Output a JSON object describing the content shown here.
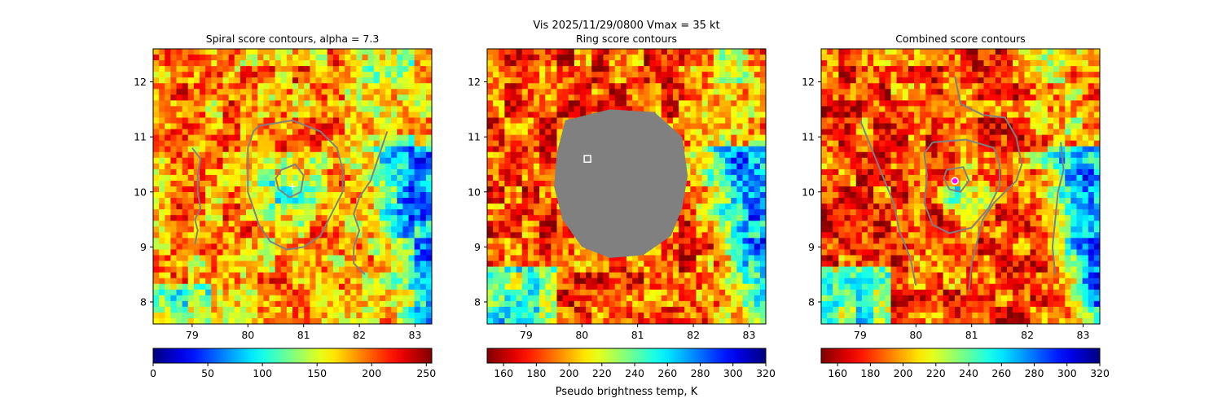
{
  "figure": {
    "suptitle_line1": "Vis  2025/11/29/0800    Vmax = 35 kt",
    "colorbar_label": "Pseudo brightness temp, K"
  },
  "chart_data": [
    {
      "type": "heatmap",
      "title": "Spiral score contours, alpha =  7.3",
      "xlim": [
        78.3,
        83.3
      ],
      "ylim": [
        7.6,
        12.6
      ],
      "xticks": [
        "79",
        "80",
        "81",
        "82",
        "83"
      ],
      "yticks": [
        "8",
        "9",
        "10",
        "11",
        "12"
      ],
      "colormap": "jet",
      "colorbar": {
        "min": 0,
        "max": 255,
        "ticks": [
          "0",
          "50",
          "100",
          "150",
          "200",
          "250"
        ]
      },
      "contour_color": "#808080",
      "center_marker": {
        "x": 80.8,
        "y": 10.1,
        "symbol": "+",
        "color": "#ffffff"
      },
      "contours": [
        [
          [
            80.2,
            11.2
          ],
          [
            80.8,
            11.3
          ],
          [
            81.3,
            11.1
          ],
          [
            81.6,
            10.8
          ],
          [
            81.7,
            10.4
          ],
          [
            81.7,
            10.0
          ],
          [
            81.5,
            9.6
          ],
          [
            81.3,
            9.2
          ],
          [
            81.0,
            9.0
          ],
          [
            80.7,
            8.95
          ],
          [
            80.4,
            9.1
          ],
          [
            80.2,
            9.4
          ],
          [
            80.1,
            9.7
          ],
          [
            80.0,
            10.0
          ],
          [
            80.0,
            10.4
          ],
          [
            80.0,
            10.8
          ],
          [
            80.1,
            11.1
          ],
          [
            80.2,
            11.2
          ]
        ],
        [
          [
            80.6,
            10.4
          ],
          [
            80.85,
            10.5
          ],
          [
            81.0,
            10.3
          ],
          [
            80.95,
            10.0
          ],
          [
            80.75,
            9.9
          ],
          [
            80.55,
            10.05
          ],
          [
            80.5,
            10.25
          ],
          [
            80.6,
            10.4
          ]
        ],
        [
          [
            79.0,
            10.8
          ],
          [
            79.15,
            10.6
          ],
          [
            79.1,
            10.3
          ],
          [
            79.1,
            10.0
          ],
          [
            79.15,
            9.7
          ],
          [
            79.05,
            9.5
          ],
          [
            79.1,
            9.3
          ],
          [
            79.05,
            9.05
          ]
        ],
        [
          [
            82.5,
            11.1
          ],
          [
            82.4,
            10.8
          ],
          [
            82.3,
            10.5
          ],
          [
            82.2,
            10.2
          ],
          [
            82.0,
            9.9
          ],
          [
            81.9,
            9.6
          ],
          [
            82.0,
            9.3
          ],
          [
            81.9,
            9.0
          ],
          [
            81.9,
            8.7
          ],
          [
            82.1,
            8.5
          ]
        ]
      ]
    },
    {
      "type": "heatmap",
      "title": "Ring score contours",
      "xlim": [
        78.3,
        83.3
      ],
      "ylim": [
        7.6,
        12.6
      ],
      "xticks": [
        "79",
        "80",
        "81",
        "82",
        "83"
      ],
      "yticks": [
        "8",
        "9",
        "10",
        "11",
        "12"
      ],
      "colormap": "jet_r",
      "colorbar": {
        "min": 150,
        "max": 320,
        "ticks": [
          "160",
          "180",
          "200",
          "220",
          "240",
          "260",
          "280",
          "300",
          "320"
        ]
      },
      "mask_color": "#808080",
      "mask_region": [
        [
          79.7,
          11.3
        ],
        [
          80.5,
          11.5
        ],
        [
          81.3,
          11.45
        ],
        [
          81.8,
          11.0
        ],
        [
          81.9,
          10.3
        ],
        [
          81.8,
          9.7
        ],
        [
          81.6,
          9.2
        ],
        [
          81.1,
          8.85
        ],
        [
          80.5,
          8.8
        ],
        [
          80.0,
          9.0
        ],
        [
          79.65,
          9.5
        ],
        [
          79.5,
          10.1
        ],
        [
          79.55,
          10.7
        ],
        [
          79.7,
          11.3
        ]
      ],
      "center_marker": {
        "x": 80.1,
        "y": 10.6,
        "symbol": "square",
        "color": "#ffffff"
      }
    },
    {
      "type": "heatmap",
      "title": "Combined score contours",
      "xlim": [
        78.3,
        83.3
      ],
      "ylim": [
        7.6,
        12.6
      ],
      "xticks": [
        "79",
        "80",
        "81",
        "82",
        "83"
      ],
      "yticks": [
        "8",
        "9",
        "10",
        "11",
        "12"
      ],
      "colormap": "jet_r",
      "colorbar": {
        "min": 150,
        "max": 320,
        "ticks": [
          "160",
          "180",
          "200",
          "220",
          "240",
          "260",
          "280",
          "300",
          "320"
        ]
      },
      "contour_color": "#808080",
      "center_marker": {
        "x": 80.7,
        "y": 10.2,
        "symbol": "circle",
        "color": "#ff00ff"
      },
      "contours": [
        [
          [
            80.3,
            10.9
          ],
          [
            80.9,
            10.95
          ],
          [
            81.4,
            10.8
          ],
          [
            81.5,
            10.5
          ],
          [
            81.5,
            10.1
          ],
          [
            81.3,
            9.7
          ],
          [
            81.0,
            9.35
          ],
          [
            80.6,
            9.25
          ],
          [
            80.3,
            9.4
          ],
          [
            80.15,
            9.8
          ],
          [
            80.2,
            10.3
          ],
          [
            80.15,
            10.7
          ],
          [
            80.3,
            10.9
          ]
        ],
        [
          [
            80.55,
            10.4
          ],
          [
            80.85,
            10.45
          ],
          [
            80.95,
            10.2
          ],
          [
            80.8,
            10.0
          ],
          [
            80.6,
            10.05
          ],
          [
            80.5,
            10.25
          ],
          [
            80.55,
            10.4
          ]
        ],
        [
          [
            79.0,
            11.3
          ],
          [
            79.2,
            10.8
          ],
          [
            79.4,
            10.3
          ],
          [
            79.6,
            9.8
          ],
          [
            79.7,
            9.3
          ],
          [
            79.9,
            8.8
          ],
          [
            80.0,
            8.3
          ]
        ],
        [
          [
            80.7,
            12.1
          ],
          [
            80.8,
            11.6
          ],
          [
            81.2,
            11.4
          ],
          [
            81.6,
            11.35
          ],
          [
            81.8,
            11.0
          ],
          [
            81.9,
            10.5
          ],
          [
            81.8,
            10.2
          ],
          [
            81.4,
            9.8
          ],
          [
            81.2,
            9.5
          ],
          [
            81.1,
            9.1
          ],
          [
            81.0,
            8.7
          ],
          [
            80.95,
            8.2
          ]
        ],
        [
          [
            82.6,
            10.9
          ],
          [
            82.65,
            10.4
          ],
          [
            82.55,
            10.0
          ],
          [
            82.5,
            9.5
          ],
          [
            82.45,
            9.0
          ],
          [
            82.5,
            8.5
          ]
        ]
      ]
    }
  ]
}
